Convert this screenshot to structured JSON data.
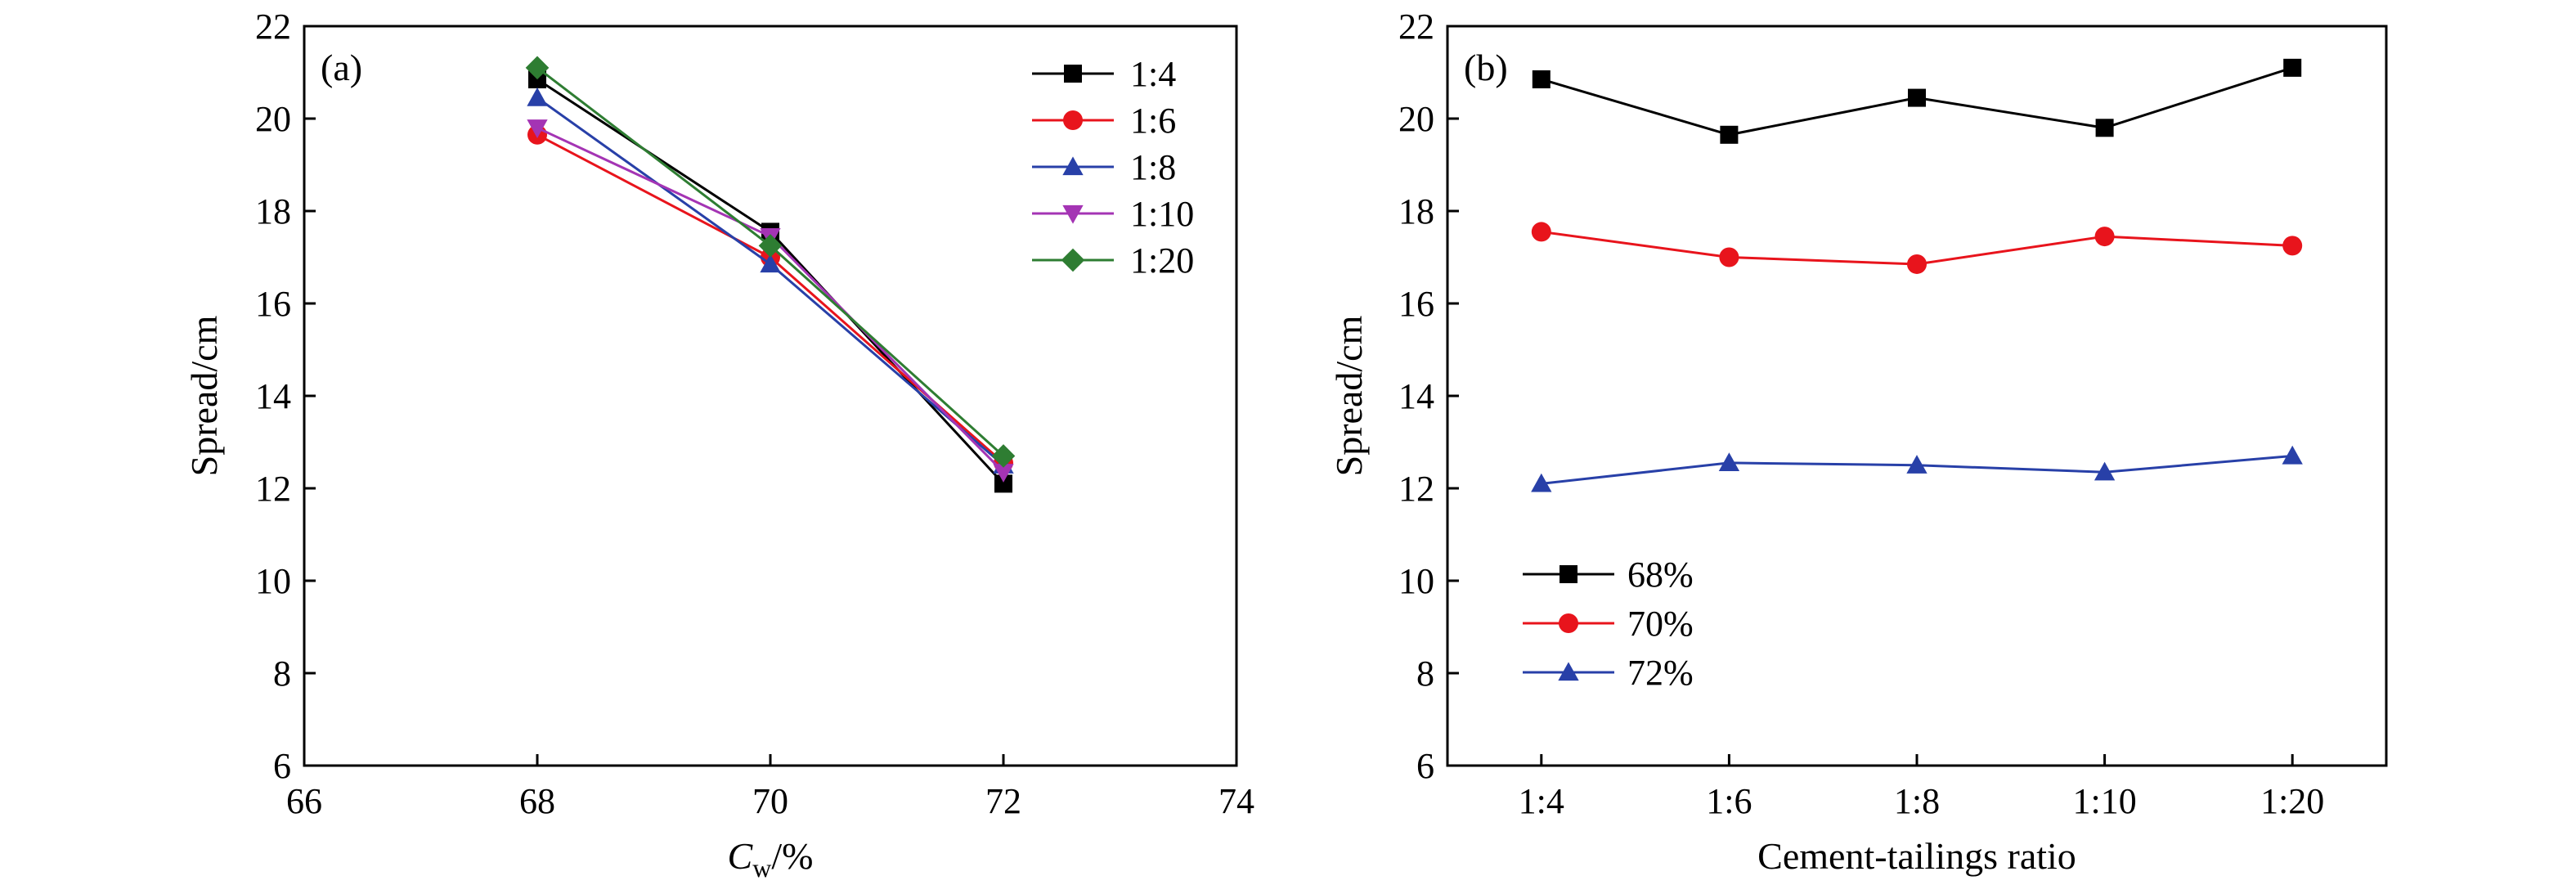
{
  "chart_data": [
    {
      "type": "line",
      "panel_label": "(a)",
      "xlabel": {
        "main": "C",
        "sub": "w",
        "unit": "/%"
      },
      "ylabel": "Spread/cm",
      "xlim": [
        66,
        74
      ],
      "ylim": [
        6,
        22
      ],
      "xticks": [
        66,
        68,
        70,
        72,
        74
      ],
      "yticks": [
        6,
        8,
        10,
        12,
        14,
        16,
        18,
        20,
        22
      ],
      "grid": false,
      "legend": "top-right",
      "x": [
        68,
        70,
        72
      ],
      "series": [
        {
          "name": "1:4",
          "values": [
            20.85,
            17.55,
            12.1
          ],
          "color": "#000000",
          "marker": "square"
        },
        {
          "name": "1:6",
          "values": [
            19.65,
            17.0,
            12.55
          ],
          "color": "#e8141c",
          "marker": "circle"
        },
        {
          "name": "1:8",
          "values": [
            20.45,
            16.85,
            12.5
          ],
          "color": "#2840a8",
          "marker": "triangle-up"
        },
        {
          "name": "1:10",
          "values": [
            19.8,
            17.45,
            12.35
          ],
          "color": "#a434b4",
          "marker": "triangle-down"
        },
        {
          "name": "1:20",
          "values": [
            21.1,
            17.25,
            12.7
          ],
          "color": "#2e7d32",
          "marker": "diamond"
        }
      ]
    },
    {
      "type": "line",
      "panel_label": "(b)",
      "xlabel": "Cement-tailings ratio",
      "ylabel": "Spread/cm",
      "ylim": [
        6,
        22
      ],
      "yticks": [
        6,
        8,
        10,
        12,
        14,
        16,
        18,
        20,
        22
      ],
      "grid": false,
      "legend": "bottom-left",
      "categories": [
        "1:4",
        "1:6",
        "1:8",
        "1:10",
        "1:20"
      ],
      "series": [
        {
          "name": "68%",
          "values": [
            20.85,
            19.65,
            20.45,
            19.8,
            21.1
          ],
          "color": "#000000",
          "marker": "square"
        },
        {
          "name": "70%",
          "values": [
            17.55,
            17.0,
            16.85,
            17.45,
            17.25
          ],
          "color": "#e8141c",
          "marker": "circle"
        },
        {
          "name": "72%",
          "values": [
            12.1,
            12.55,
            12.5,
            12.35,
            12.7
          ],
          "color": "#2840a8",
          "marker": "triangle-up"
        }
      ]
    }
  ]
}
